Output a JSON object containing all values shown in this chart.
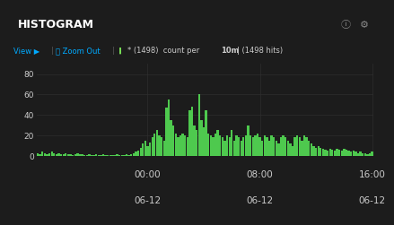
{
  "title": "HISTOGRAM",
  "bg_color": "#1c1c1c",
  "header_color": "#141414",
  "plot_bg_color": "#1c1c1c",
  "bar_color": "#4ec94e",
  "grid_color": "#2e2e2e",
  "text_color": "#cccccc",
  "cyan_color": "#00aaff",
  "yticks": [
    0,
    20,
    40,
    60,
    80
  ],
  "ylim": [
    0,
    90
  ],
  "legend_dot_color": "#77dd55",
  "n_bars": 144,
  "bar_values": [
    3,
    2,
    4,
    3,
    2,
    3,
    4,
    3,
    2,
    3,
    2,
    2,
    3,
    2,
    2,
    1,
    2,
    3,
    2,
    2,
    1,
    1,
    2,
    1,
    1,
    2,
    1,
    1,
    2,
    1,
    1,
    1,
    1,
    1,
    2,
    1,
    1,
    1,
    2,
    1,
    2,
    3,
    4,
    5,
    8,
    12,
    15,
    10,
    13,
    18,
    22,
    25,
    20,
    18,
    15,
    47,
    55,
    35,
    30,
    22,
    18,
    20,
    22,
    20,
    18,
    45,
    48,
    30,
    25,
    60,
    35,
    28,
    45,
    22,
    20,
    18,
    22,
    25,
    20,
    18,
    15,
    20,
    18,
    25,
    15,
    20,
    18,
    15,
    18,
    20,
    30,
    20,
    18,
    20,
    22,
    18,
    15,
    20,
    18,
    15,
    20,
    18,
    15,
    12,
    18,
    20,
    18,
    15,
    12,
    10,
    18,
    20,
    18,
    15,
    20,
    18,
    15,
    12,
    10,
    8,
    10,
    8,
    7,
    6,
    5,
    7,
    6,
    5,
    7,
    6,
    5,
    7,
    6,
    5,
    4,
    5,
    4,
    3,
    4,
    3,
    3,
    2,
    3,
    4
  ],
  "x_tick_pos": [
    47,
    95,
    143
  ],
  "x_tick_labels_top": [
    "00:00",
    "08:00",
    "16:00"
  ],
  "x_tick_labels_bot": [
    "06-12",
    "06-12",
    "06-12"
  ]
}
